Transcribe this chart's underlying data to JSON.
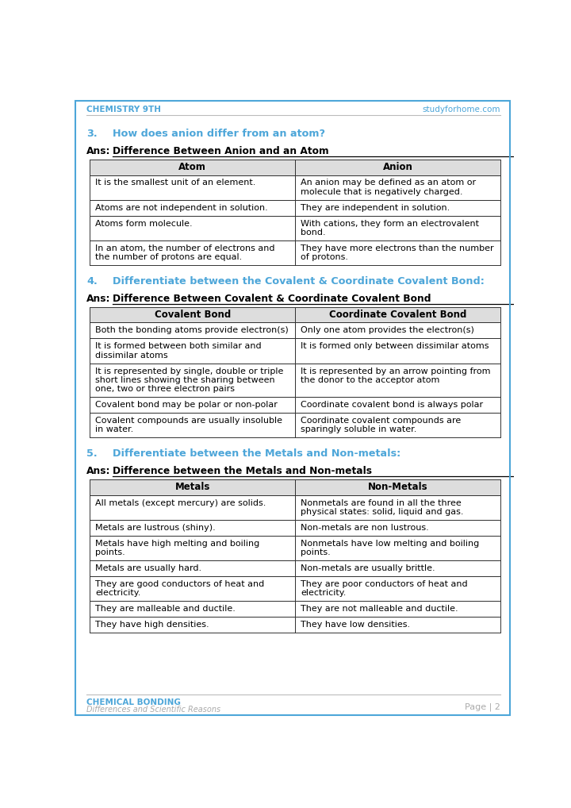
{
  "page_bg": "#ffffff",
  "border_color": "#4da6d9",
  "header_left": "CHEMISTRY 9TH",
  "header_right": "studyforhome.com",
  "header_color": "#4da6d9",
  "footer_left1": "CHEMICAL BONDING",
  "footer_left2": "Differences and Scientific Reasons",
  "footer_right": "Page | 2",
  "footer_color": "#4da6d9",
  "footer_subtext_color": "#aaaaaa",
  "question_color": "#4da6d9",
  "ans_label_color": "#000000",
  "table_header_bg": "#dddddd",
  "table_border": "#333333",
  "table_text_color": "#000000",
  "sections": [
    {
      "number": "3.",
      "question": "How does anion differ from an atom?",
      "ans_title": "Difference Between Anion and an Atom",
      "col1_header": "Atom",
      "col2_header": "Anion",
      "rows": [
        [
          "It is the smallest unit of an element.",
          "An anion may be defined as an atom or\nmolecule that is negatively charged."
        ],
        [
          "Atoms are not independent in solution.",
          "They are independent in solution."
        ],
        [
          "Atoms form molecule.",
          "With cations, they form an electrovalent\nbond."
        ],
        [
          "In an atom, the number of electrons and\nthe number of protons are equal.",
          "They have more electrons than the number\nof protons."
        ]
      ]
    },
    {
      "number": "4.",
      "question": "Differentiate between the Covalent & Coordinate Covalent Bond:",
      "ans_title": "Difference Between Covalent & Coordinate Covalent Bond",
      "col1_header": "Covalent Bond",
      "col2_header": "Coordinate Covalent Bond",
      "rows": [
        [
          "Both the bonding atoms provide electron(s)",
          "Only one atom provides the electron(s)"
        ],
        [
          "It is formed between both similar and\ndissimilar atoms",
          "It is formed only between dissimilar atoms"
        ],
        [
          "It is represented by single, double or triple\nshort lines showing the sharing between\none, two or three electron pairs",
          "It is represented by an arrow pointing from\nthe donor to the acceptor atom"
        ],
        [
          "Covalent bond may be polar or non-polar",
          "Coordinate covalent bond is always polar"
        ],
        [
          "Covalent compounds are usually insoluble\nin water.",
          "Coordinate covalent compounds are\nsparingly soluble in water."
        ]
      ]
    },
    {
      "number": "5.",
      "question": "Differentiate between the Metals and Non-metals:",
      "ans_title": "Difference between the Metals and Non-metals",
      "col1_header": "Metals",
      "col2_header": "Non-Metals",
      "rows": [
        [
          "All metals (except mercury) are solids.",
          "Nonmetals are found in all the three\nphysical states: solid, liquid and gas."
        ],
        [
          "Metals are lustrous (shiny).",
          "Non-metals are non lustrous."
        ],
        [
          "Metals have high melting and boiling\npoints.",
          "Nonmetals have low melting and boiling\npoints."
        ],
        [
          "Metals are usually hard.",
          "Non-metals are usually brittle."
        ],
        [
          "They are good conductors of heat and\nelectricity.",
          "They are poor conductors of heat and\nelectricity."
        ],
        [
          "They are malleable and ductile.",
          "They are not malleable and ductile."
        ],
        [
          "They have high densities.",
          "They have low densities."
        ]
      ]
    }
  ]
}
